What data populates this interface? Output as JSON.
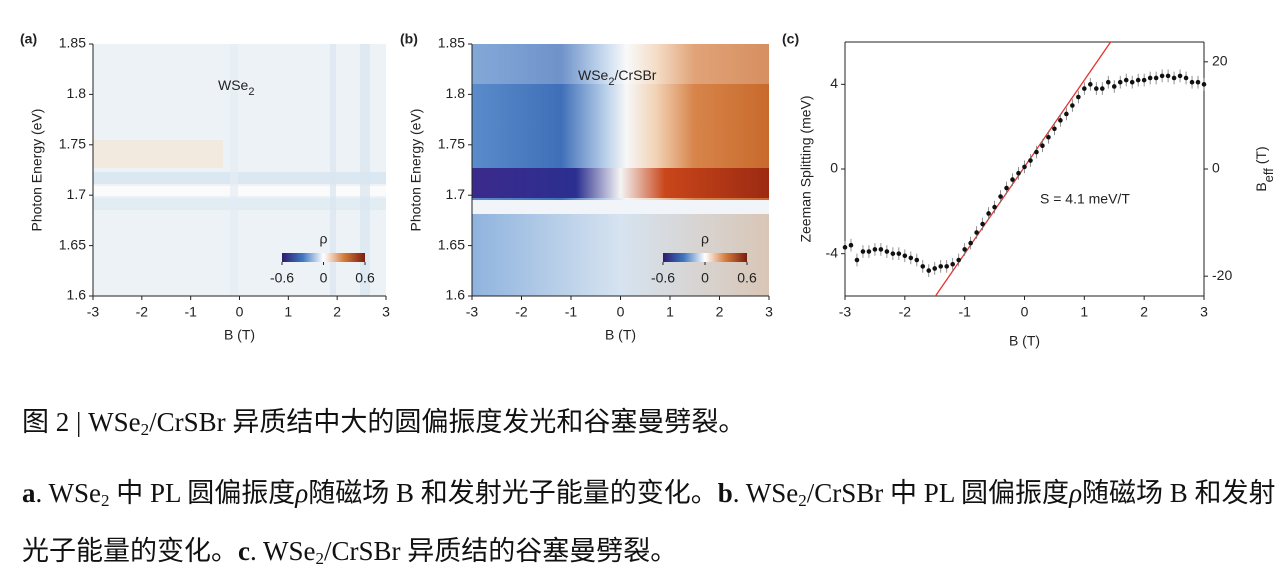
{
  "chart_data": [
    {
      "type": "heatmap",
      "letter": "(a)",
      "label": [
        "WSe",
        "2"
      ],
      "xlabel": "B (T)",
      "ylabel": "Photon Energy (eV)",
      "xlim": [
        -3,
        3
      ],
      "xticks": [
        -3,
        -2,
        -1,
        0,
        1,
        2,
        3
      ],
      "ylim": [
        1.6,
        1.85
      ],
      "yticks": [
        1.6,
        1.65,
        1.7,
        1.75,
        1.8,
        1.85
      ],
      "colorbar": {
        "label": "ρ",
        "lim": [
          -0.6,
          0.6
        ],
        "ticks": [
          -0.6,
          0,
          0.6
        ]
      }
    },
    {
      "type": "heatmap",
      "letter": "(b)",
      "label": [
        "WSe",
        "2",
        "/CrSBr"
      ],
      "xlabel": "B (T)",
      "ylabel": "Photon Energy (eV)",
      "xlim": [
        -3,
        3
      ],
      "xticks": [
        -3,
        -2,
        -1,
        0,
        1,
        2,
        3
      ],
      "ylim": [
        1.6,
        1.85
      ],
      "yticks": [
        1.6,
        1.65,
        1.7,
        1.75,
        1.8,
        1.85
      ],
      "colorbar": {
        "label": "ρ",
        "lim": [
          -0.6,
          0.6
        ],
        "ticks": [
          -0.6,
          0,
          0.6
        ]
      }
    },
    {
      "type": "scatter",
      "letter": "(c)",
      "xlabel": "B (T)",
      "ylabel": "Zeeman Splitting (meV)",
      "y2label": [
        "B",
        "eff",
        " (T)"
      ],
      "annotation": "S = 4.1 meV/T",
      "xlim": [
        -3,
        3
      ],
      "xticks": [
        -3,
        -2,
        -1,
        0,
        1,
        2,
        3
      ],
      "ylim": [
        -6,
        6
      ],
      "yticks": [
        -4,
        0,
        4
      ],
      "y2lim": [
        -23.7,
        23.7
      ],
      "y2ticks": [
        -20,
        0,
        20
      ],
      "color": "#111111",
      "x": [
        -3.0,
        -2.9,
        -2.8,
        -2.7,
        -2.6,
        -2.5,
        -2.4,
        -2.3,
        -2.2,
        -2.1,
        -2.0,
        -1.9,
        -1.8,
        -1.7,
        -1.6,
        -1.5,
        -1.4,
        -1.3,
        -1.2,
        -1.1,
        -1.0,
        -0.9,
        -0.8,
        -0.7,
        -0.6,
        -0.5,
        -0.4,
        -0.3,
        -0.2,
        -0.1,
        0.0,
        0.1,
        0.2,
        0.3,
        0.4,
        0.5,
        0.6,
        0.7,
        0.8,
        0.9,
        1.0,
        1.1,
        1.2,
        1.3,
        1.4,
        1.5,
        1.6,
        1.7,
        1.8,
        1.9,
        2.0,
        2.1,
        2.2,
        2.3,
        2.4,
        2.5,
        2.6,
        2.7,
        2.8,
        2.9,
        3.0
      ],
      "values": [
        -3.7,
        -3.6,
        -4.3,
        -3.9,
        -3.9,
        -3.8,
        -3.8,
        -3.9,
        -4.0,
        -4.0,
        -4.1,
        -4.2,
        -4.3,
        -4.6,
        -4.8,
        -4.7,
        -4.6,
        -4.6,
        -4.5,
        -4.3,
        -3.8,
        -3.5,
        -3.0,
        -2.6,
        -2.1,
        -1.8,
        -1.3,
        -0.9,
        -0.5,
        -0.2,
        0.1,
        0.4,
        0.8,
        1.1,
        1.5,
        1.9,
        2.3,
        2.6,
        3.0,
        3.4,
        3.8,
        4.0,
        3.8,
        3.8,
        4.1,
        3.9,
        4.1,
        4.2,
        4.1,
        4.2,
        4.2,
        4.3,
        4.3,
        4.4,
        4.4,
        4.3,
        4.4,
        4.3,
        4.1,
        4.1,
        4.0
      ],
      "errors": [
        0.3,
        0.3,
        0.3,
        0.3,
        0.3,
        0.3,
        0.3,
        0.3,
        0.3,
        0.3,
        0.3,
        0.3,
        0.3,
        0.3,
        0.3,
        0.3,
        0.3,
        0.3,
        0.3,
        0.3,
        0.3,
        0.3,
        0.3,
        0.3,
        0.3,
        0.3,
        0.3,
        0.3,
        0.3,
        0.3,
        0.3,
        0.3,
        0.3,
        0.3,
        0.3,
        0.3,
        0.3,
        0.3,
        0.3,
        0.3,
        0.3,
        0.3,
        0.3,
        0.3,
        0.3,
        0.3,
        0.3,
        0.3,
        0.3,
        0.3,
        0.3,
        0.3,
        0.3,
        0.3,
        0.3,
        0.3,
        0.3,
        0.3,
        0.3,
        0.3,
        0.3
      ],
      "fit": {
        "slope": 4.1,
        "intercept": 0.1,
        "color": "#e8312f"
      }
    }
  ],
  "caption": {
    "title": [
      {
        "text": "图 2 | WSe",
        "style": "normal"
      },
      {
        "text": "2",
        "style": "sub"
      },
      {
        "text": "/CrSBr 异质结中大的圆偏振度发光和谷塞曼劈裂。",
        "style": "normal"
      }
    ],
    "body": [
      {
        "text": "a",
        "style": "bold"
      },
      {
        "text": ". WSe",
        "style": "normal"
      },
      {
        "text": "2",
        "style": "sub"
      },
      {
        "text": " 中 PL 圆偏振度",
        "style": "normal"
      },
      {
        "text": "ρ",
        "style": "italic"
      },
      {
        "text": "随磁场 B 和发射光子能量的变化。",
        "style": "normal"
      },
      {
        "text": "b",
        "style": "bold"
      },
      {
        "text": ". WSe",
        "style": "normal"
      },
      {
        "text": "2",
        "style": "sub"
      },
      {
        "text": "/CrSBr 中 PL 圆偏振度",
        "style": "normal"
      },
      {
        "text": "ρ",
        "style": "italic"
      },
      {
        "text": "随磁场 B 和发射光子能量的变化。",
        "style": "normal"
      },
      {
        "text": "c",
        "style": "bold"
      },
      {
        "text": ". WSe",
        "style": "normal"
      },
      {
        "text": "2",
        "style": "sub"
      },
      {
        "text": "/CrSBr 异质结的谷塞曼劈裂。",
        "style": "normal"
      }
    ]
  }
}
